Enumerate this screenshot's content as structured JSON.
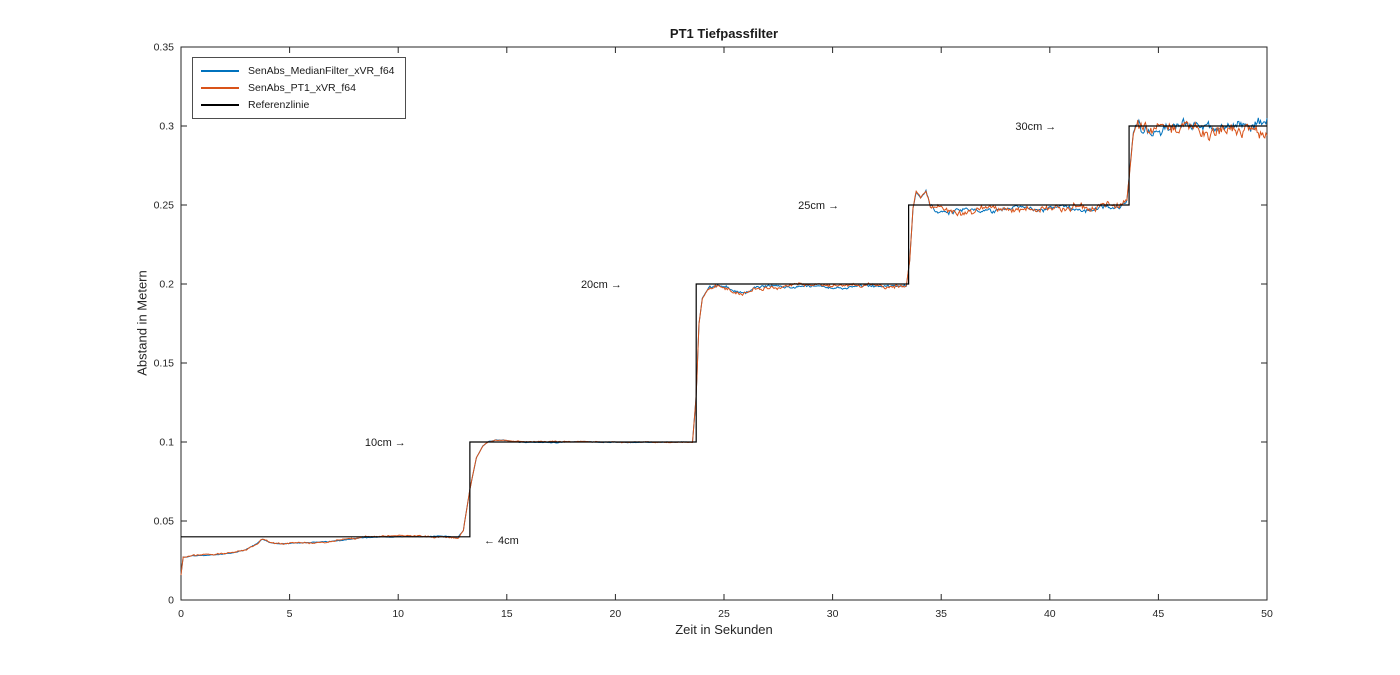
{
  "chart_data": {
    "type": "line",
    "title": "PT1 Tiefpassfilter",
    "xlabel": "Zeit in Sekunden",
    "ylabel": "Abstand in Metern",
    "xlim": [
      0,
      50
    ],
    "ylim": [
      0,
      0.35
    ],
    "xticks": [
      0,
      5,
      10,
      15,
      20,
      25,
      30,
      35,
      40,
      45,
      50
    ],
    "xtick_labels": [
      "0",
      "5",
      "10",
      "15",
      "20",
      "25",
      "30",
      "35",
      "40",
      "45",
      "50"
    ],
    "yticks": [
      0,
      0.05,
      0.1,
      0.15,
      0.2,
      0.25,
      0.3,
      0.35
    ],
    "ytick_labels": [
      "0",
      "0.05",
      "0.1",
      "0.15",
      "0.2",
      "0.25",
      "0.3",
      "0.35"
    ],
    "grid": false,
    "axis_color": "#262626",
    "reference_color": "#000000",
    "legend": {
      "position": "top-left",
      "entries": [
        {
          "label": "SenAbs_MedianFilter_xVR_f64",
          "color": "#0072BD"
        },
        {
          "label": "SenAbs_PT1_xVR_f64",
          "color": "#D95319"
        },
        {
          "label": "Referenzlinie",
          "color": "#000000"
        }
      ]
    },
    "reference_steps": [
      {
        "t0": 0,
        "t1": 13.3,
        "y": 0.04
      },
      {
        "t0": 13.3,
        "t1": 23.72,
        "y": 0.1
      },
      {
        "t0": 23.72,
        "t1": 33.5,
        "y": 0.2
      },
      {
        "t0": 33.5,
        "t1": 43.65,
        "y": 0.25
      },
      {
        "t0": 43.65,
        "t1": 50,
        "y": 0.3
      }
    ],
    "signal_anchors": [
      [
        0,
        0.016
      ],
      [
        0.1,
        0.027
      ],
      [
        0.8,
        0.028
      ],
      [
        1.6,
        0.0287
      ],
      [
        2.4,
        0.03
      ],
      [
        3.0,
        0.032
      ],
      [
        3.5,
        0.0355
      ],
      [
        3.75,
        0.0382
      ],
      [
        4.1,
        0.036
      ],
      [
        4.6,
        0.0352
      ],
      [
        5.2,
        0.0358
      ],
      [
        6.0,
        0.0362
      ],
      [
        6.8,
        0.037
      ],
      [
        7.6,
        0.0382
      ],
      [
        8.4,
        0.0395
      ],
      [
        9.2,
        0.04
      ],
      [
        10.2,
        0.0402
      ],
      [
        11.2,
        0.0399
      ],
      [
        12.2,
        0.0401
      ],
      [
        12.75,
        0.0392
      ],
      [
        13.0,
        0.044
      ],
      [
        13.3,
        0.07
      ],
      [
        13.6,
        0.09
      ],
      [
        13.9,
        0.0975
      ],
      [
        14.15,
        0.1002
      ],
      [
        14.5,
        0.1015
      ],
      [
        15.1,
        0.101
      ],
      [
        15.6,
        0.1002
      ],
      [
        17.0,
        0.1
      ],
      [
        19.0,
        0.1001
      ],
      [
        21.0,
        0.0999
      ],
      [
        23.0,
        0.1
      ],
      [
        23.55,
        0.1
      ],
      [
        23.72,
        0.13
      ],
      [
        23.85,
        0.175
      ],
      [
        24.0,
        0.191
      ],
      [
        24.3,
        0.1978
      ],
      [
        24.7,
        0.1988
      ],
      [
        25.2,
        0.1972
      ],
      [
        25.6,
        0.1942
      ],
      [
        26.0,
        0.1945
      ],
      [
        26.4,
        0.1972
      ],
      [
        27.0,
        0.1986
      ],
      [
        28.0,
        0.1984
      ],
      [
        29.2,
        0.1988
      ],
      [
        30.4,
        0.1984
      ],
      [
        31.6,
        0.1987
      ],
      [
        32.6,
        0.1982
      ],
      [
        33.0,
        0.1988
      ],
      [
        33.4,
        0.1992
      ],
      [
        33.55,
        0.215
      ],
      [
        33.7,
        0.248
      ],
      [
        33.85,
        0.2585
      ],
      [
        34.05,
        0.2545
      ],
      [
        34.3,
        0.259
      ],
      [
        34.5,
        0.25
      ],
      [
        34.8,
        0.2465
      ],
      [
        35.6,
        0.2462
      ],
      [
        36.6,
        0.2465
      ],
      [
        37.6,
        0.2468
      ],
      [
        38.8,
        0.2472
      ],
      [
        40.0,
        0.2468
      ],
      [
        41.2,
        0.2475
      ],
      [
        42.4,
        0.2478
      ],
      [
        43.2,
        0.249
      ],
      [
        43.55,
        0.253
      ],
      [
        43.7,
        0.275
      ],
      [
        43.85,
        0.296
      ],
      [
        44.0,
        0.3015
      ],
      [
        44.3,
        0.2995
      ],
      [
        45.0,
        0.3002
      ],
      [
        46.0,
        0.3006
      ],
      [
        47.0,
        0.2996
      ],
      [
        48.2,
        0.3001
      ],
      [
        49.2,
        0.2997
      ],
      [
        50,
        0.3
      ]
    ],
    "series": [
      {
        "name": "SenAbs_MedianFilter_xVR_f64",
        "color": "#0072BD",
        "seed": 9011,
        "dt": 0.05,
        "noise": [
          {
            "t0": 0,
            "t1": 12.9,
            "amp": 0.0003
          },
          {
            "t0": 12.9,
            "t1": 14.2,
            "amp": 0.0002
          },
          {
            "t0": 14.2,
            "t1": 23.6,
            "amp": 0.0003
          },
          {
            "t0": 23.6,
            "t1": 24.3,
            "amp": 0.0003
          },
          {
            "t0": 24.3,
            "t1": 33.4,
            "amp": 0.001
          },
          {
            "t0": 33.4,
            "t1": 34.3,
            "amp": 0.0006
          },
          {
            "t0": 34.3,
            "t1": 43.5,
            "amp": 0.0018
          },
          {
            "t0": 43.5,
            "t1": 44.0,
            "amp": 0.0012
          },
          {
            "t0": 44.0,
            "t1": 50.01,
            "amp": 0.0042
          }
        ]
      },
      {
        "name": "SenAbs_PT1_xVR_f64",
        "color": "#D95319",
        "seed": 4217,
        "dt": 0.05,
        "noise": [
          {
            "t0": 0,
            "t1": 12.9,
            "amp": 0.0006
          },
          {
            "t0": 12.9,
            "t1": 14.2,
            "amp": 0.0002
          },
          {
            "t0": 14.2,
            "t1": 23.6,
            "amp": 0.0004
          },
          {
            "t0": 23.6,
            "t1": 24.3,
            "amp": 0.0003
          },
          {
            "t0": 24.3,
            "t1": 33.4,
            "amp": 0.0013
          },
          {
            "t0": 33.4,
            "t1": 34.3,
            "amp": 0.0008
          },
          {
            "t0": 34.3,
            "t1": 40.0,
            "amp": 0.0022
          },
          {
            "t0": 40.0,
            "t1": 43.5,
            "amp": 0.0028
          },
          {
            "t0": 43.5,
            "t1": 44.0,
            "amp": 0.0015
          },
          {
            "t0": 44.0,
            "t1": 50.01,
            "amp": 0.0048
          }
        ]
      }
    ],
    "annotations": [
      {
        "text": "10cm →",
        "t": 10.35,
        "y": 0.1,
        "anchor": "end"
      },
      {
        "text": "← 4cm",
        "t": 13.95,
        "y": 0.038,
        "anchor": "start"
      },
      {
        "text": "20cm →",
        "t": 20.3,
        "y": 0.2,
        "anchor": "end"
      },
      {
        "text": "25cm →",
        "t": 30.3,
        "y": 0.25,
        "anchor": "end"
      },
      {
        "text": "30cm →",
        "t": 40.3,
        "y": 0.3,
        "anchor": "end"
      }
    ]
  }
}
